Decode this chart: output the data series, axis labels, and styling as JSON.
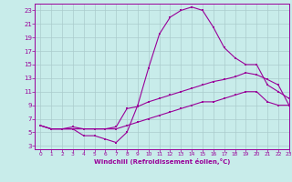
{
  "xlabel": "Windchill (Refroidissement éolien,°C)",
  "bg_color": "#c8ecea",
  "line_color": "#990099",
  "grid_color": "#aacccc",
  "xlim": [
    -0.5,
    23
  ],
  "ylim": [
    2.5,
    24
  ],
  "xticks": [
    0,
    1,
    2,
    3,
    4,
    5,
    6,
    7,
    8,
    9,
    10,
    11,
    12,
    13,
    14,
    15,
    16,
    17,
    18,
    19,
    20,
    21,
    22,
    23
  ],
  "yticks": [
    3,
    5,
    7,
    9,
    11,
    13,
    15,
    17,
    19,
    21,
    23
  ],
  "line1_x": [
    0,
    1,
    2,
    3,
    4,
    5,
    6,
    7,
    8,
    9,
    10,
    11,
    12,
    13,
    14,
    15,
    16,
    17,
    18,
    19,
    20,
    21,
    22,
    23
  ],
  "line1_y": [
    6,
    5.5,
    5.5,
    5.5,
    4.5,
    4.5,
    4,
    3.5,
    5,
    9,
    14.5,
    19.5,
    22,
    23,
    23.5,
    23,
    20.5,
    17.5,
    16,
    15,
    15,
    12,
    11,
    10
  ],
  "line2_x": [
    0,
    1,
    2,
    3,
    4,
    5,
    6,
    7,
    8,
    9,
    10,
    11,
    12,
    13,
    14,
    15,
    16,
    17,
    18,
    19,
    20,
    21,
    22,
    23
  ],
  "line2_y": [
    6,
    5.5,
    5.5,
    5.8,
    5.5,
    5.5,
    5.5,
    5.8,
    8.5,
    8.8,
    9.5,
    10,
    10.5,
    11,
    11.5,
    12,
    12.5,
    12.8,
    13.2,
    13.8,
    13.5,
    12.8,
    12,
    9
  ],
  "line3_x": [
    0,
    1,
    2,
    3,
    4,
    5,
    6,
    7,
    8,
    9,
    10,
    11,
    12,
    13,
    14,
    15,
    16,
    17,
    18,
    19,
    20,
    21,
    22,
    23
  ],
  "line3_y": [
    6,
    5.5,
    5.5,
    5.5,
    5.5,
    5.5,
    5.5,
    5.5,
    6,
    6.5,
    7,
    7.5,
    8,
    8.5,
    9,
    9.5,
    9.5,
    10,
    10.5,
    11,
    11,
    9.5,
    9,
    9
  ]
}
